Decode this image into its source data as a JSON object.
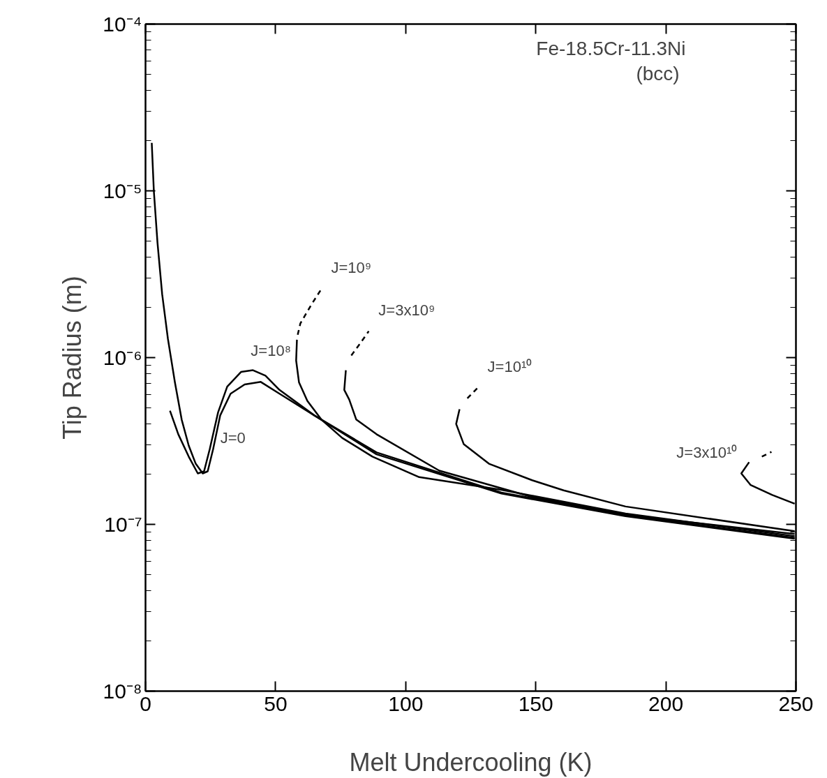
{
  "chart_data": {
    "type": "line",
    "xlabel": "Melt Undercooling (K)",
    "ylabel": "Tip Radius (m)",
    "log": "y",
    "grid": false,
    "marker": "none",
    "xlim": [
      0,
      250
    ],
    "xticks": [
      0,
      50,
      100,
      150,
      200,
      250
    ],
    "ylim": [
      1e-08,
      0.0001
    ],
    "yticks": [
      {
        "value": 1e-08,
        "label": "10⁻⁸"
      },
      {
        "value": 1e-07,
        "label": "10⁻⁷"
      },
      {
        "value": 1e-06,
        "label": "10⁻⁶"
      },
      {
        "value": 1e-05,
        "label": "10⁻⁵"
      },
      {
        "value": 0.0001,
        "label": "10⁻⁴"
      }
    ],
    "series": [
      {
        "color": "#000000",
        "line_style": "solid",
        "x": [
          2.4,
          3.2,
          4.6,
          6.4,
          8.6,
          11.3,
          13.9,
          16.6,
          19.3,
          22.0,
          23.9,
          26.0,
          28.7,
          32.7,
          38.1,
          44.3,
          51.5,
          64.9,
          88.8,
          136.8,
          184.5,
          249.5
        ],
        "values": [
          1.94e-05,
          1e-05,
          4.9e-06,
          2.4e-06,
          1.3e-06,
          7.1e-07,
          4.25e-07,
          2.97e-07,
          2.31e-07,
          2.02e-07,
          2.08e-07,
          2.83e-07,
          4.5e-07,
          6.07e-07,
          6.9e-07,
          7.15e-07,
          6.07e-07,
          4.5e-07,
          2.63e-07,
          1.53e-07,
          1.12e-07,
          8.2e-08
        ]
      },
      {
        "color": "#000000",
        "line_style": "solid",
        "x": [
          9.4,
          12.6,
          16.6,
          20.1,
          22.5,
          24.7,
          27.9,
          31.4,
          36.7,
          41.3,
          46.1,
          51.5,
          64.9,
          88.8,
          136.8,
          184.5,
          249.5
        ],
        "values": [
          4.8e-07,
          3.47e-07,
          2.55e-07,
          2.02e-07,
          2.08e-07,
          2.83e-07,
          4.7e-07,
          6.7e-07,
          8.2e-07,
          8.4e-07,
          7.8e-07,
          6.4e-07,
          4.5e-07,
          2.7e-07,
          1.55e-07,
          1.14e-07,
          8.3e-08
        ]
      },
      {
        "color": "#000000",
        "line_style": "solid",
        "x": [
          58.2,
          57.9,
          59.0,
          62.2,
          67.6,
          75.6,
          87.2,
          105.2,
          136.8,
          184.5,
          249.5
        ],
        "values": [
          1.28e-06,
          9.6e-07,
          7.1e-07,
          5.5e-07,
          4.25e-07,
          3.3e-07,
          2.55e-07,
          1.92e-07,
          1.61e-07,
          1.16e-07,
          8.5e-08
        ]
      },
      {
        "color": "#000000",
        "line_style": "dashed",
        "x": [
          58.5,
          59.5,
          63.6,
          67.6
        ],
        "values": [
          1.37e-06,
          1.6e-06,
          2.06e-06,
          2.58e-06
        ]
      },
      {
        "color": "#000000",
        "line_style": "solid",
        "x": [
          77.0,
          76.4,
          78.3,
          81.0,
          88.8,
          112.9,
          148.6,
          184.5,
          249.5
        ],
        "values": [
          8.4e-07,
          6.4e-07,
          5.6e-07,
          4.25e-07,
          3.47e-07,
          2.1e-07,
          1.46e-07,
          1.14e-07,
          8.75e-08
        ]
      },
      {
        "color": "#000000",
        "line_style": "dashed",
        "x": [
          79.1,
          82.4,
          85.8
        ],
        "values": [
          1.03e-06,
          1.21e-06,
          1.44e-06
        ]
      },
      {
        "color": "#000000",
        "line_style": "solid",
        "x": [
          120.7,
          119.4,
          122.3,
          132.0,
          148.6,
          160.7,
          184.5,
          249.5
        ],
        "values": [
          4.9e-07,
          4e-07,
          3.03e-07,
          2.31e-07,
          1.84e-07,
          1.6e-07,
          1.28e-07,
          9.1e-08
        ]
      },
      {
        "color": "#000000",
        "line_style": "dashed",
        "x": [
          123.7,
          127.7
        ],
        "values": [
          5.7e-07,
          6.6e-07
        ]
      },
      {
        "color": "#000000",
        "line_style": "solid",
        "x": [
          232.0,
          229.0,
          232.6,
          240.9,
          249.5
        ],
        "values": [
          2.36e-07,
          2.02e-07,
          1.72e-07,
          1.5e-07,
          1.33e-07
        ]
      },
      {
        "color": "#000000",
        "line_style": "dashed",
        "x": [
          236.9,
          240.6
        ],
        "values": [
          2.55e-07,
          2.72e-07
        ]
      }
    ],
    "annotations": [
      "Fe-18.5Cr-11.3Ni",
      "(bcc)",
      {
        "text": "J=0",
        "x": 25,
        "y": 2.45e-07
      },
      {
        "text": "J=10⁸",
        "x": 36.7,
        "y": 8.2e-07
      },
      {
        "text": "J=10⁹",
        "x": 67.6,
        "y": 2.58e-06
      },
      {
        "text": "J=3x10⁹",
        "x": 85.8,
        "y": 1.44e-06
      },
      {
        "text": "J=10¹⁰",
        "x": 127.7,
        "y": 6.6e-07
      },
      {
        "text": "J=3x10¹⁰",
        "x": 229.0,
        "y": 2.02e-07
      }
    ]
  }
}
